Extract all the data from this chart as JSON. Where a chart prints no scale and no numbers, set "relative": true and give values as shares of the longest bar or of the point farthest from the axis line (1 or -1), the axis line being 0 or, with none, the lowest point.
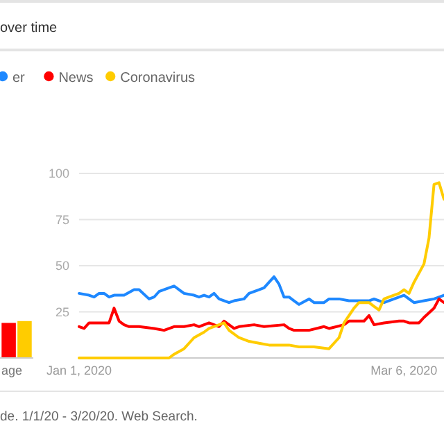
{
  "chart_data": [
    {
      "type": "line",
      "title": "over time",
      "legend": "top left",
      "grid": "y",
      "ylim": [
        0,
        100
      ],
      "yticks": [
        25,
        50,
        75,
        100
      ],
      "xlim": [
        "2020-01-01",
        "2020-03-14"
      ],
      "xticks": [
        {
          "value": "2020-01-01",
          "label": "Jan 1, 2020"
        },
        {
          "value": "2020-03-06",
          "label": "Mar 6, 2020"
        }
      ],
      "annotations": [
        "de. 1/1/20 - 3/20/20. Web Search."
      ],
      "series": [
        {
          "name": "er",
          "color": "#1e88ff",
          "x": [
            "2020-01-01",
            "2020-01-03",
            "2020-01-04",
            "2020-01-05",
            "2020-01-06",
            "2020-01-07",
            "2020-01-08",
            "2020-01-10",
            "2020-01-12",
            "2020-01-13",
            "2020-01-15",
            "2020-01-16",
            "2020-01-17",
            "2020-01-19",
            "2020-01-20",
            "2020-01-21",
            "2020-01-22",
            "2020-01-24",
            "2020-01-25",
            "2020-01-26",
            "2020-01-27",
            "2020-01-28",
            "2020-01-29",
            "2020-01-31",
            "2020-02-01",
            "2020-02-03",
            "2020-02-04",
            "2020-02-06",
            "2020-02-07",
            "2020-02-08",
            "2020-02-09",
            "2020-02-10",
            "2020-02-11",
            "2020-02-12",
            "2020-02-13",
            "2020-02-14",
            "2020-02-16",
            "2020-02-17",
            "2020-02-19",
            "2020-02-20",
            "2020-02-22",
            "2020-02-24",
            "2020-02-28",
            "2020-02-29",
            "2020-03-02",
            "2020-03-04",
            "2020-03-06",
            "2020-03-07",
            "2020-03-08",
            "2020-03-10",
            "2020-03-12",
            "2020-03-14"
          ],
          "values": [
            35,
            34,
            33,
            35,
            35,
            33,
            34,
            34,
            37,
            37,
            32,
            33,
            36,
            38,
            39,
            37,
            35,
            34,
            33,
            34,
            33,
            35,
            32,
            30,
            31,
            32,
            35,
            37,
            38,
            41,
            44,
            40,
            33,
            33,
            31,
            29,
            32,
            30,
            30,
            32,
            32,
            31,
            31,
            32,
            30,
            32,
            34,
            32,
            30,
            31,
            32,
            34
          ]
        },
        {
          "name": "News",
          "color": "#ff0000",
          "x": [
            "2020-01-01",
            "2020-01-02",
            "2020-01-03",
            "2020-01-07",
            "2020-01-08",
            "2020-01-09",
            "2020-01-10",
            "2020-01-11",
            "2020-01-13",
            "2020-01-16",
            "2020-01-18",
            "2020-01-20",
            "2020-01-22",
            "2020-01-24",
            "2020-01-25",
            "2020-01-27",
            "2020-01-28",
            "2020-01-29",
            "2020-01-30",
            "2020-02-01",
            "2020-02-02",
            "2020-02-05",
            "2020-02-07",
            "2020-02-11",
            "2020-02-12",
            "2020-02-13",
            "2020-02-16",
            "2020-02-19",
            "2020-02-20",
            "2020-02-23",
            "2020-02-24",
            "2020-02-27",
            "2020-02-28",
            "2020-02-29",
            "2020-03-02",
            "2020-03-05",
            "2020-03-06",
            "2020-03-07",
            "2020-03-09",
            "2020-03-10",
            "2020-03-12",
            "2020-03-13",
            "2020-03-14"
          ],
          "values": [
            17,
            16,
            19,
            19,
            27,
            20,
            18,
            17,
            17,
            16,
            15,
            17,
            17,
            18,
            17,
            19,
            18,
            17,
            20,
            16,
            17,
            18,
            17,
            18,
            16,
            15,
            15,
            17,
            16,
            18,
            20,
            20,
            23,
            18,
            19,
            20,
            20,
            19,
            19,
            22,
            27,
            32,
            30
          ]
        },
        {
          "name": "Coronavirus",
          "color": "#ffcc00",
          "x": [
            "2020-01-01",
            "2020-01-19",
            "2020-01-20",
            "2020-01-22",
            "2020-01-24",
            "2020-01-26",
            "2020-01-27",
            "2020-01-29",
            "2020-01-30",
            "2020-01-31",
            "2020-02-02",
            "2020-02-04",
            "2020-02-06",
            "2020-02-08",
            "2020-02-12",
            "2020-02-14",
            "2020-02-17",
            "2020-02-20",
            "2020-02-22",
            "2020-02-23",
            "2020-02-25",
            "2020-02-26",
            "2020-02-28",
            "2020-02-29",
            "2020-03-01",
            "2020-03-02",
            "2020-03-03",
            "2020-03-05",
            "2020-03-06",
            "2020-03-07",
            "2020-03-08",
            "2020-03-10",
            "2020-03-11",
            "2020-03-12",
            "2020-03-13",
            "2020-03-14"
          ],
          "values": [
            0,
            0,
            2,
            5,
            11,
            14,
            16,
            18,
            19,
            15,
            11,
            9,
            8,
            7,
            7,
            6,
            6,
            5,
            11,
            19,
            27,
            30,
            30,
            28,
            26,
            32,
            33,
            35,
            37,
            35,
            41,
            51,
            65,
            94,
            95,
            86
          ]
        }
      ]
    },
    {
      "type": "bar",
      "relative": true,
      "categories": [
        null,
        null
      ],
      "values": [
        0.95,
        1
      ],
      "colors": [
        "#ff0000",
        "#ffcc00"
      ],
      "xlabel": "age"
    }
  ]
}
